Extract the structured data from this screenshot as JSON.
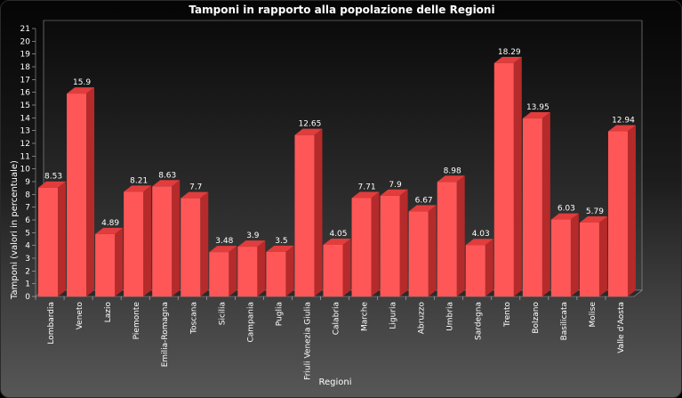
{
  "chart_data": {
    "type": "bar",
    "title": "Tamponi in rapporto alla popolazione delle Regioni",
    "xlabel": "Regioni",
    "ylabel": "Tamponi (valori in percentuale)",
    "ylim": [
      0,
      21
    ],
    "yticks": [
      0,
      1,
      2,
      3,
      4,
      5,
      6,
      7,
      8,
      9,
      10,
      11,
      12,
      13,
      14,
      15,
      16,
      17,
      18,
      19,
      20,
      21
    ],
    "categories": [
      "Lombardia",
      "Veneto",
      "Lazio",
      "Piemonte",
      "Emilia-Romagna",
      "Toscana",
      "Sicilia",
      "Campania",
      "Puglia",
      "Friuli Venezia Giulia",
      "Calabria",
      "Marche",
      "Liguria",
      "Abruzzo",
      "Umbria",
      "Sardegna",
      "Trento",
      "Bolzano",
      "Basilicata",
      "Molise",
      "Valle d'Aosta"
    ],
    "values": [
      8.53,
      15.9,
      4.89,
      8.21,
      8.63,
      7.7,
      3.48,
      3.9,
      3.5,
      12.65,
      4.05,
      7.71,
      7.9,
      6.67,
      8.98,
      4.03,
      18.29,
      13.95,
      6.03,
      5.79,
      12.94
    ],
    "bar_color": "#ff5757",
    "grid": false,
    "legend": "none"
  }
}
